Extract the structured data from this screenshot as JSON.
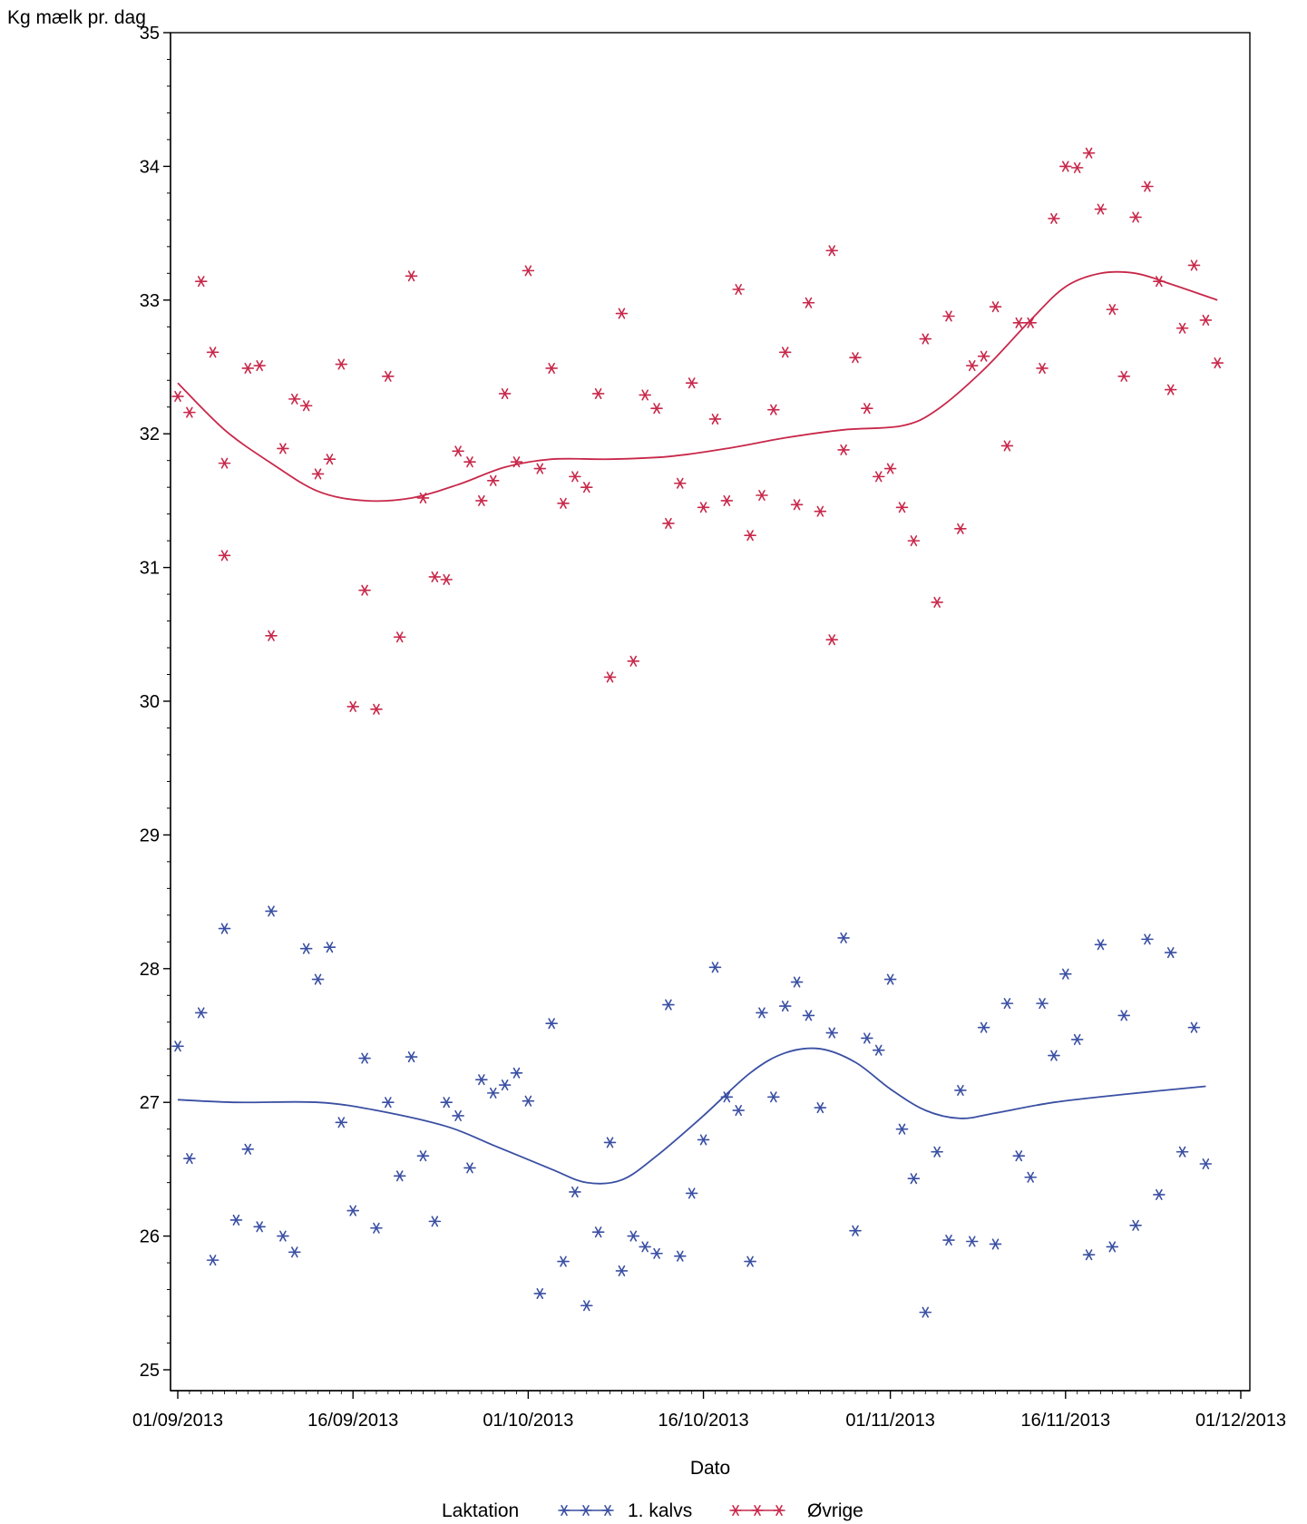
{
  "chart_data": {
    "type": "scatter",
    "title": "",
    "ylabel": "Kg mælk pr. dag",
    "xlabel": "Dato",
    "ylim": [
      25,
      35
    ],
    "xlim": [
      "2013-09-01",
      "2013-12-01"
    ],
    "grid": false,
    "y_ticks": [
      25,
      26,
      27,
      28,
      29,
      30,
      31,
      32,
      33,
      34,
      35
    ],
    "y_tick_labels": [
      "25",
      "26",
      "27",
      "28",
      "29",
      "30",
      "31",
      "32",
      "33",
      "34",
      "35"
    ],
    "x_ticks": [
      "2013-09-01",
      "2013-09-16",
      "2013-10-01",
      "2013-10-16",
      "2013-11-01",
      "2013-11-16",
      "2013-12-01"
    ],
    "x_tick_labels": [
      "01/09/2013",
      "16/09/2013",
      "01/10/2013",
      "16/10/2013",
      "01/11/2013",
      "16/11/2013",
      "01/12/2013"
    ],
    "legend": {
      "title": "Laktation",
      "position": "bottom",
      "entries": [
        "1. kalvs",
        "Øvrige"
      ]
    },
    "series": [
      {
        "name": "1. kalvs",
        "color": "#3a4fa3",
        "marker": "asterisk",
        "points": [
          [
            "2013-09-01",
            27.42
          ],
          [
            "2013-09-02",
            26.58
          ],
          [
            "2013-09-03",
            27.67
          ],
          [
            "2013-09-04",
            25.82
          ],
          [
            "2013-09-05",
            28.3
          ],
          [
            "2013-09-06",
            26.12
          ],
          [
            "2013-09-07",
            26.65
          ],
          [
            "2013-09-08",
            26.07
          ],
          [
            "2013-09-09",
            28.43
          ],
          [
            "2013-09-10",
            26.0
          ],
          [
            "2013-09-11",
            25.88
          ],
          [
            "2013-09-12",
            28.15
          ],
          [
            "2013-09-13",
            27.92
          ],
          [
            "2013-09-14",
            28.16
          ],
          [
            "2013-09-15",
            26.85
          ],
          [
            "2013-09-16",
            26.19
          ],
          [
            "2013-09-17",
            27.33
          ],
          [
            "2013-09-18",
            26.06
          ],
          [
            "2013-09-19",
            27.0
          ],
          [
            "2013-09-20",
            26.45
          ],
          [
            "2013-09-21",
            27.34
          ],
          [
            "2013-09-22",
            26.6
          ],
          [
            "2013-09-23",
            26.11
          ],
          [
            "2013-09-24",
            27.0
          ],
          [
            "2013-09-25",
            26.9
          ],
          [
            "2013-09-26",
            26.51
          ],
          [
            "2013-09-27",
            27.17
          ],
          [
            "2013-09-28",
            27.07
          ],
          [
            "2013-09-29",
            27.13
          ],
          [
            "2013-09-30",
            27.22
          ],
          [
            "2013-10-01",
            27.01
          ],
          [
            "2013-10-02",
            25.57
          ],
          [
            "2013-10-03",
            27.59
          ],
          [
            "2013-10-04",
            25.81
          ],
          [
            "2013-10-05",
            26.33
          ],
          [
            "2013-10-06",
            25.48
          ],
          [
            "2013-10-07",
            26.03
          ],
          [
            "2013-10-08",
            26.7
          ],
          [
            "2013-10-09",
            25.74
          ],
          [
            "2013-10-10",
            26.0
          ],
          [
            "2013-10-11",
            25.92
          ],
          [
            "2013-10-12",
            25.87
          ],
          [
            "2013-10-13",
            27.73
          ],
          [
            "2013-10-14",
            25.85
          ],
          [
            "2013-10-15",
            26.32
          ],
          [
            "2013-10-16",
            26.72
          ],
          [
            "2013-10-17",
            28.01
          ],
          [
            "2013-10-18",
            27.04
          ],
          [
            "2013-10-19",
            26.94
          ],
          [
            "2013-10-20",
            25.81
          ],
          [
            "2013-10-21",
            27.67
          ],
          [
            "2013-10-22",
            27.04
          ],
          [
            "2013-10-23",
            27.72
          ],
          [
            "2013-10-24",
            27.9
          ],
          [
            "2013-10-25",
            27.65
          ],
          [
            "2013-10-26",
            26.96
          ],
          [
            "2013-10-27",
            27.52
          ],
          [
            "2013-10-28",
            28.23
          ],
          [
            "2013-10-29",
            26.04
          ],
          [
            "2013-10-30",
            27.48
          ],
          [
            "2013-10-31",
            27.39
          ],
          [
            "2013-11-01",
            27.92
          ],
          [
            "2013-11-02",
            26.8
          ],
          [
            "2013-11-03",
            26.43
          ],
          [
            "2013-11-04",
            25.43
          ],
          [
            "2013-11-05",
            26.63
          ],
          [
            "2013-11-06",
            25.97
          ],
          [
            "2013-11-07",
            27.09
          ],
          [
            "2013-11-08",
            25.96
          ],
          [
            "2013-11-09",
            27.56
          ],
          [
            "2013-11-10",
            25.94
          ],
          [
            "2013-11-11",
            27.74
          ],
          [
            "2013-11-12",
            26.6
          ],
          [
            "2013-11-13",
            26.44
          ],
          [
            "2013-11-14",
            27.74
          ],
          [
            "2013-11-15",
            27.35
          ],
          [
            "2013-11-16",
            27.96
          ],
          [
            "2013-11-17",
            27.47
          ],
          [
            "2013-11-18",
            25.86
          ],
          [
            "2013-11-19",
            28.18
          ],
          [
            "2013-11-20",
            25.92
          ],
          [
            "2013-11-21",
            27.65
          ],
          [
            "2013-11-22",
            26.08
          ],
          [
            "2013-11-23",
            28.22
          ],
          [
            "2013-11-24",
            26.31
          ],
          [
            "2013-11-25",
            28.12
          ],
          [
            "2013-11-26",
            26.63
          ],
          [
            "2013-11-27",
            27.56
          ],
          [
            "2013-11-28",
            26.54
          ]
        ],
        "smooth": [
          [
            "2013-09-01",
            27.02
          ],
          [
            "2013-09-06",
            27.0
          ],
          [
            "2013-09-13",
            27.0
          ],
          [
            "2013-09-18",
            26.94
          ],
          [
            "2013-09-24",
            26.82
          ],
          [
            "2013-09-28",
            26.68
          ],
          [
            "2013-10-03",
            26.5
          ],
          [
            "2013-10-06",
            26.4
          ],
          [
            "2013-10-09",
            26.42
          ],
          [
            "2013-10-12",
            26.6
          ],
          [
            "2013-10-16",
            26.9
          ],
          [
            "2013-10-20",
            27.22
          ],
          [
            "2013-10-23",
            27.37
          ],
          [
            "2013-10-26",
            27.4
          ],
          [
            "2013-10-29",
            27.3
          ],
          [
            "2013-11-01",
            27.1
          ],
          [
            "2013-11-04",
            26.94
          ],
          [
            "2013-11-07",
            26.88
          ],
          [
            "2013-11-10",
            26.92
          ],
          [
            "2013-11-15",
            27.0
          ],
          [
            "2013-11-21",
            27.06
          ],
          [
            "2013-11-28",
            27.12
          ]
        ]
      },
      {
        "name": "Øvrige",
        "color": "#c8284a",
        "marker": "asterisk",
        "points": [
          [
            "2013-09-01",
            32.28
          ],
          [
            "2013-09-02",
            32.16
          ],
          [
            "2013-09-03",
            33.14
          ],
          [
            "2013-09-04",
            32.61
          ],
          [
            "2013-09-05",
            31.78
          ],
          [
            "2013-09-05",
            31.09
          ],
          [
            "2013-09-07",
            32.49
          ],
          [
            "2013-09-08",
            32.51
          ],
          [
            "2013-09-09",
            30.49
          ],
          [
            "2013-09-10",
            31.89
          ],
          [
            "2013-09-11",
            32.26
          ],
          [
            "2013-09-12",
            32.21
          ],
          [
            "2013-09-13",
            31.7
          ],
          [
            "2013-09-14",
            31.81
          ],
          [
            "2013-09-15",
            32.52
          ],
          [
            "2013-09-16",
            29.96
          ],
          [
            "2013-09-17",
            30.83
          ],
          [
            "2013-09-18",
            29.94
          ],
          [
            "2013-09-19",
            32.43
          ],
          [
            "2013-09-20",
            30.48
          ],
          [
            "2013-09-21",
            33.18
          ],
          [
            "2013-09-22",
            31.52
          ],
          [
            "2013-09-23",
            30.93
          ],
          [
            "2013-09-24",
            30.91
          ],
          [
            "2013-09-25",
            31.87
          ],
          [
            "2013-09-26",
            31.79
          ],
          [
            "2013-09-27",
            31.5
          ],
          [
            "2013-09-28",
            31.65
          ],
          [
            "2013-09-29",
            32.3
          ],
          [
            "2013-09-30",
            31.79
          ],
          [
            "2013-10-01",
            33.22
          ],
          [
            "2013-10-02",
            31.74
          ],
          [
            "2013-10-03",
            32.49
          ],
          [
            "2013-10-04",
            31.48
          ],
          [
            "2013-10-05",
            31.68
          ],
          [
            "2013-10-06",
            31.6
          ],
          [
            "2013-10-07",
            32.3
          ],
          [
            "2013-10-08",
            30.18
          ],
          [
            "2013-10-09",
            32.9
          ],
          [
            "2013-10-10",
            30.3
          ],
          [
            "2013-10-11",
            32.29
          ],
          [
            "2013-10-12",
            32.19
          ],
          [
            "2013-10-13",
            31.33
          ],
          [
            "2013-10-14",
            31.63
          ],
          [
            "2013-10-15",
            32.38
          ],
          [
            "2013-10-16",
            31.45
          ],
          [
            "2013-10-17",
            32.11
          ],
          [
            "2013-10-18",
            31.5
          ],
          [
            "2013-10-19",
            33.08
          ],
          [
            "2013-10-20",
            31.24
          ],
          [
            "2013-10-21",
            31.54
          ],
          [
            "2013-10-22",
            32.18
          ],
          [
            "2013-10-23",
            32.61
          ],
          [
            "2013-10-24",
            31.47
          ],
          [
            "2013-10-25",
            32.98
          ],
          [
            "2013-10-26",
            31.42
          ],
          [
            "2013-10-27",
            33.37
          ],
          [
            "2013-10-27",
            30.46
          ],
          [
            "2013-10-28",
            31.88
          ],
          [
            "2013-10-29",
            32.57
          ],
          [
            "2013-10-30",
            32.19
          ],
          [
            "2013-10-31",
            31.68
          ],
          [
            "2013-11-01",
            31.74
          ],
          [
            "2013-11-02",
            31.45
          ],
          [
            "2013-11-03",
            31.2
          ],
          [
            "2013-11-04",
            32.71
          ],
          [
            "2013-11-05",
            30.74
          ],
          [
            "2013-11-06",
            32.88
          ],
          [
            "2013-11-07",
            31.29
          ],
          [
            "2013-11-08",
            32.51
          ],
          [
            "2013-11-09",
            32.58
          ],
          [
            "2013-11-10",
            32.95
          ],
          [
            "2013-11-11",
            31.91
          ],
          [
            "2013-11-12",
            32.83
          ],
          [
            "2013-11-13",
            32.83
          ],
          [
            "2013-11-14",
            32.49
          ],
          [
            "2013-11-15",
            33.61
          ],
          [
            "2013-11-16",
            34.0
          ],
          [
            "2013-11-17",
            33.99
          ],
          [
            "2013-11-18",
            34.1
          ],
          [
            "2013-11-19",
            33.68
          ],
          [
            "2013-11-20",
            32.93
          ],
          [
            "2013-11-21",
            32.43
          ],
          [
            "2013-11-22",
            33.62
          ],
          [
            "2013-11-23",
            33.85
          ],
          [
            "2013-11-24",
            33.14
          ],
          [
            "2013-11-25",
            32.33
          ],
          [
            "2013-11-26",
            32.79
          ],
          [
            "2013-11-27",
            33.26
          ],
          [
            "2013-11-28",
            32.85
          ],
          [
            "2013-11-29",
            32.53
          ]
        ],
        "smooth": [
          [
            "2013-09-01",
            32.38
          ],
          [
            "2013-09-05",
            32.03
          ],
          [
            "2013-09-09",
            31.78
          ],
          [
            "2013-09-13",
            31.57
          ],
          [
            "2013-09-17",
            31.5
          ],
          [
            "2013-09-21",
            31.52
          ],
          [
            "2013-09-25",
            31.62
          ],
          [
            "2013-09-29",
            31.75
          ],
          [
            "2013-10-03",
            31.81
          ],
          [
            "2013-10-08",
            31.81
          ],
          [
            "2013-10-13",
            31.83
          ],
          [
            "2013-10-18",
            31.89
          ],
          [
            "2013-10-23",
            31.97
          ],
          [
            "2013-10-28",
            32.03
          ],
          [
            "2013-11-02",
            32.06
          ],
          [
            "2013-11-05",
            32.18
          ],
          [
            "2013-11-09",
            32.48
          ],
          [
            "2013-11-13",
            32.85
          ],
          [
            "2013-11-16",
            33.1
          ],
          [
            "2013-11-19",
            33.2
          ],
          [
            "2013-11-22",
            33.2
          ],
          [
            "2013-11-25",
            33.12
          ],
          [
            "2013-11-29",
            33.0
          ]
        ]
      }
    ]
  }
}
